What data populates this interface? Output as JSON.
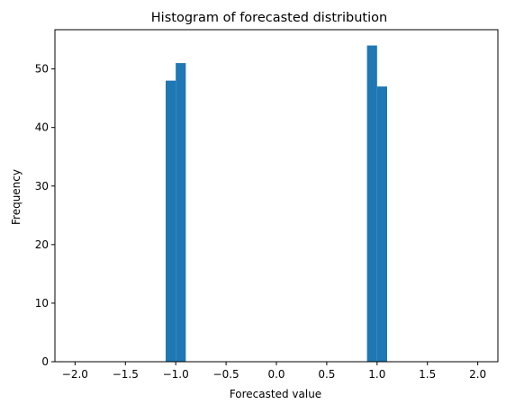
{
  "chart_data": {
    "type": "bar",
    "title": "Histogram of forecasted distribution",
    "xlabel": "Forecasted value",
    "ylabel": "Frequency",
    "xlim": [
      -2.2,
      2.2
    ],
    "ylim": [
      0,
      56.7
    ],
    "xticks": [
      -2.0,
      -1.5,
      -1.0,
      -0.5,
      0.0,
      0.5,
      1.0,
      1.5,
      2.0
    ],
    "xtick_labels": [
      "−2.0",
      "−1.5",
      "−1.0",
      "−0.5",
      "0.0",
      "0.5",
      "1.0",
      "1.5",
      "2.0"
    ],
    "yticks": [
      0,
      10,
      20,
      30,
      40,
      50
    ],
    "ytick_labels": [
      "0",
      "10",
      "20",
      "30",
      "40",
      "50"
    ],
    "grid": false,
    "legend": "none",
    "bar_color": "#1f77b4",
    "bins": [
      {
        "x0": -1.1,
        "x1": -1.0,
        "value": 48
      },
      {
        "x0": -1.0,
        "x1": -0.9,
        "value": 51
      },
      {
        "x0": 0.9,
        "x1": 1.0,
        "value": 54
      },
      {
        "x0": 1.0,
        "x1": 1.1,
        "value": 47
      }
    ]
  }
}
